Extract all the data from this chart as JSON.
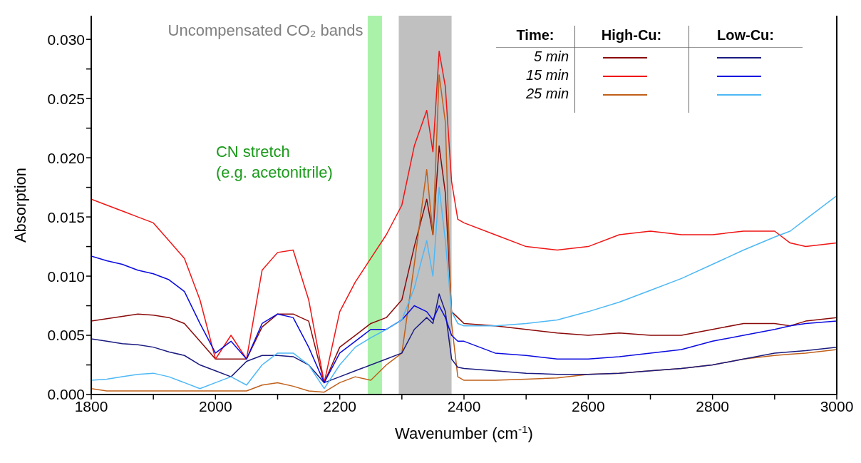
{
  "chart_data": {
    "type": "line",
    "xlabel": "Wavenumber (cm$^{-1}$)",
    "ylabel": "Absorption",
    "legend_title": "Time:",
    "legend": "top right",
    "grid": false,
    "annotations": [
      "High-Cu:",
      "Low-Cu:"
    ],
    "x": [
      1800,
      1825,
      1850,
      1875,
      1900,
      1925,
      1950,
      1975,
      2000,
      2025,
      2050,
      2075,
      2100,
      2125,
      2150,
      2175,
      2200,
      2225,
      2250,
      2275,
      2300,
      2320,
      2340,
      2350,
      2360,
      2370,
      2380,
      2390,
      2400,
      2450,
      2500,
      2550,
      2600,
      2650,
      2700,
      2750,
      2800,
      2850,
      2900,
      2925,
      2950,
      3000
    ],
    "xlim": [
      1800,
      3000
    ],
    "xticks": [
      1800,
      {
        "value": 1900,
        "label": null
      },
      2000,
      {
        "value": 2100,
        "label": null
      },
      2200,
      {
        "value": 2300,
        "label": null
      },
      2400,
      {
        "value": 2500,
        "label": null
      },
      2600,
      {
        "value": 2700,
        "label": null
      },
      2800,
      {
        "value": 2900,
        "label": null
      },
      3000
    ],
    "ylim": [
      0,
      0.032
    ],
    "yticks": [
      {
        "value": 0,
        "label": "0.000"
      },
      {
        "value": 0.0025,
        "label": null
      },
      {
        "value": 0.005,
        "label": "0.005"
      },
      {
        "value": 0.0075,
        "label": null
      },
      {
        "value": 0.01,
        "label": "0.010"
      },
      {
        "value": 0.0125,
        "label": null
      },
      {
        "value": 0.015,
        "label": "0.015"
      },
      {
        "value": 0.0175,
        "label": null
      },
      {
        "value": 0.02,
        "label": "0.020"
      },
      {
        "value": 0.0225,
        "label": null
      },
      {
        "value": 0.025,
        "label": "0.025"
      },
      {
        "value": 0.0275,
        "label": null
      },
      {
        "value": 0.03,
        "label": "0.030"
      }
    ],
    "bands": [
      {
        "axis": "x",
        "from": 2295,
        "to": 2380,
        "label": "Uncompensated CO₂ bands",
        "color": "#c0c0c0"
      },
      {
        "axis": "x",
        "from": 2245,
        "to": 2268,
        "label": "CN stretch\n(e.g. acetonitrile)",
        "color": "#aaf2aa"
      }
    ],
    "series": [
      {
        "name": "5 min",
        "color": "#8b0a0a",
        "values": [
          0.0062,
          0.0064,
          0.0066,
          0.0068,
          0.0067,
          0.0065,
          0.006,
          0.0045,
          0.003,
          0.003,
          0.003,
          0.0057,
          0.0068,
          0.0068,
          0.0062,
          0.001,
          0.004,
          0.005,
          0.006,
          0.0065,
          0.008,
          0.0125,
          0.0165,
          0.0135,
          0.021,
          0.017,
          0.007,
          0.0065,
          0.006,
          0.0058,
          0.0055,
          0.0052,
          0.005,
          0.0052,
          0.005,
          0.005,
          0.0055,
          0.006,
          0.006,
          0.0058,
          0.0062,
          0.0065
        ]
      },
      {
        "name": "15 min",
        "color": "#f01414",
        "values": [
          0.0165,
          0.016,
          0.0155,
          0.015,
          0.0145,
          0.013,
          0.0115,
          0.008,
          0.003,
          0.005,
          0.003,
          0.0105,
          0.012,
          0.0122,
          0.008,
          0.001,
          0.007,
          0.0095,
          0.0115,
          0.0135,
          0.016,
          0.021,
          0.024,
          0.0205,
          0.029,
          0.026,
          0.018,
          0.0148,
          0.0145,
          0.0135,
          0.0125,
          0.0122,
          0.0125,
          0.0135,
          0.0138,
          0.0135,
          0.0135,
          0.0138,
          0.0138,
          0.0128,
          0.0125,
          0.0128
        ]
      },
      {
        "name": "25 min",
        "color": "#c0601a",
        "values": [
          0.0005,
          0.0003,
          0.0003,
          0.0003,
          0.0003,
          0.0003,
          0.0003,
          0.0003,
          0.0003,
          0.0003,
          0.0003,
          0.0008,
          0.001,
          0.0007,
          0.0003,
          0.0002,
          0.001,
          0.0015,
          0.0012,
          0.0025,
          0.0035,
          0.011,
          0.019,
          0.0135,
          0.027,
          0.023,
          0.006,
          0.0015,
          0.0012,
          0.0012,
          0.0013,
          0.0014,
          0.0017,
          0.0018,
          0.002,
          0.0022,
          0.0025,
          0.003,
          0.0033,
          0.0034,
          0.0035,
          0.0038
        ]
      },
      {
        "color": "#1a1a80",
        "values": [
          0.0047,
          0.0045,
          0.0043,
          0.0042,
          0.004,
          0.0036,
          0.0033,
          0.0025,
          0.002,
          0.0015,
          0.0028,
          0.0033,
          0.0033,
          0.0032,
          0.0025,
          0.001,
          0.0015,
          0.002,
          0.0025,
          0.003,
          0.0035,
          0.0055,
          0.0065,
          0.006,
          0.0085,
          0.007,
          0.003,
          0.0023,
          0.0022,
          0.002,
          0.0018,
          0.0017,
          0.0017,
          0.0018,
          0.002,
          0.0022,
          0.0025,
          0.003,
          0.0035,
          0.0036,
          0.0037,
          0.004
        ]
      },
      {
        "color": "#0a0ae0",
        "values": [
          0.0117,
          0.0113,
          0.011,
          0.0105,
          0.0102,
          0.0097,
          0.0087,
          0.006,
          0.0035,
          0.0045,
          0.003,
          0.006,
          0.0068,
          0.0065,
          0.004,
          0.001,
          0.0035,
          0.0045,
          0.0055,
          0.0055,
          0.0063,
          0.0075,
          0.007,
          0.0063,
          0.0075,
          0.0065,
          0.005,
          0.0045,
          0.0045,
          0.0035,
          0.0033,
          0.003,
          0.003,
          0.0032,
          0.0035,
          0.0038,
          0.0045,
          0.005,
          0.0055,
          0.0058,
          0.006,
          0.0062
        ]
      },
      {
        "color": "#4db8f5",
        "values": [
          0.0012,
          0.0013,
          0.0015,
          0.0017,
          0.0018,
          0.0015,
          0.001,
          0.0005,
          0.001,
          0.0015,
          0.0008,
          0.0025,
          0.0035,
          0.0035,
          0.0025,
          0.0005,
          0.0025,
          0.004,
          0.0048,
          0.0055,
          0.0063,
          0.009,
          0.013,
          0.01,
          0.0175,
          0.013,
          0.007,
          0.006,
          0.0058,
          0.0058,
          0.006,
          0.0063,
          0.007,
          0.0078,
          0.0088,
          0.0098,
          0.011,
          0.0122,
          0.0133,
          0.0138,
          0.0148,
          0.0168
        ]
      }
    ]
  }
}
